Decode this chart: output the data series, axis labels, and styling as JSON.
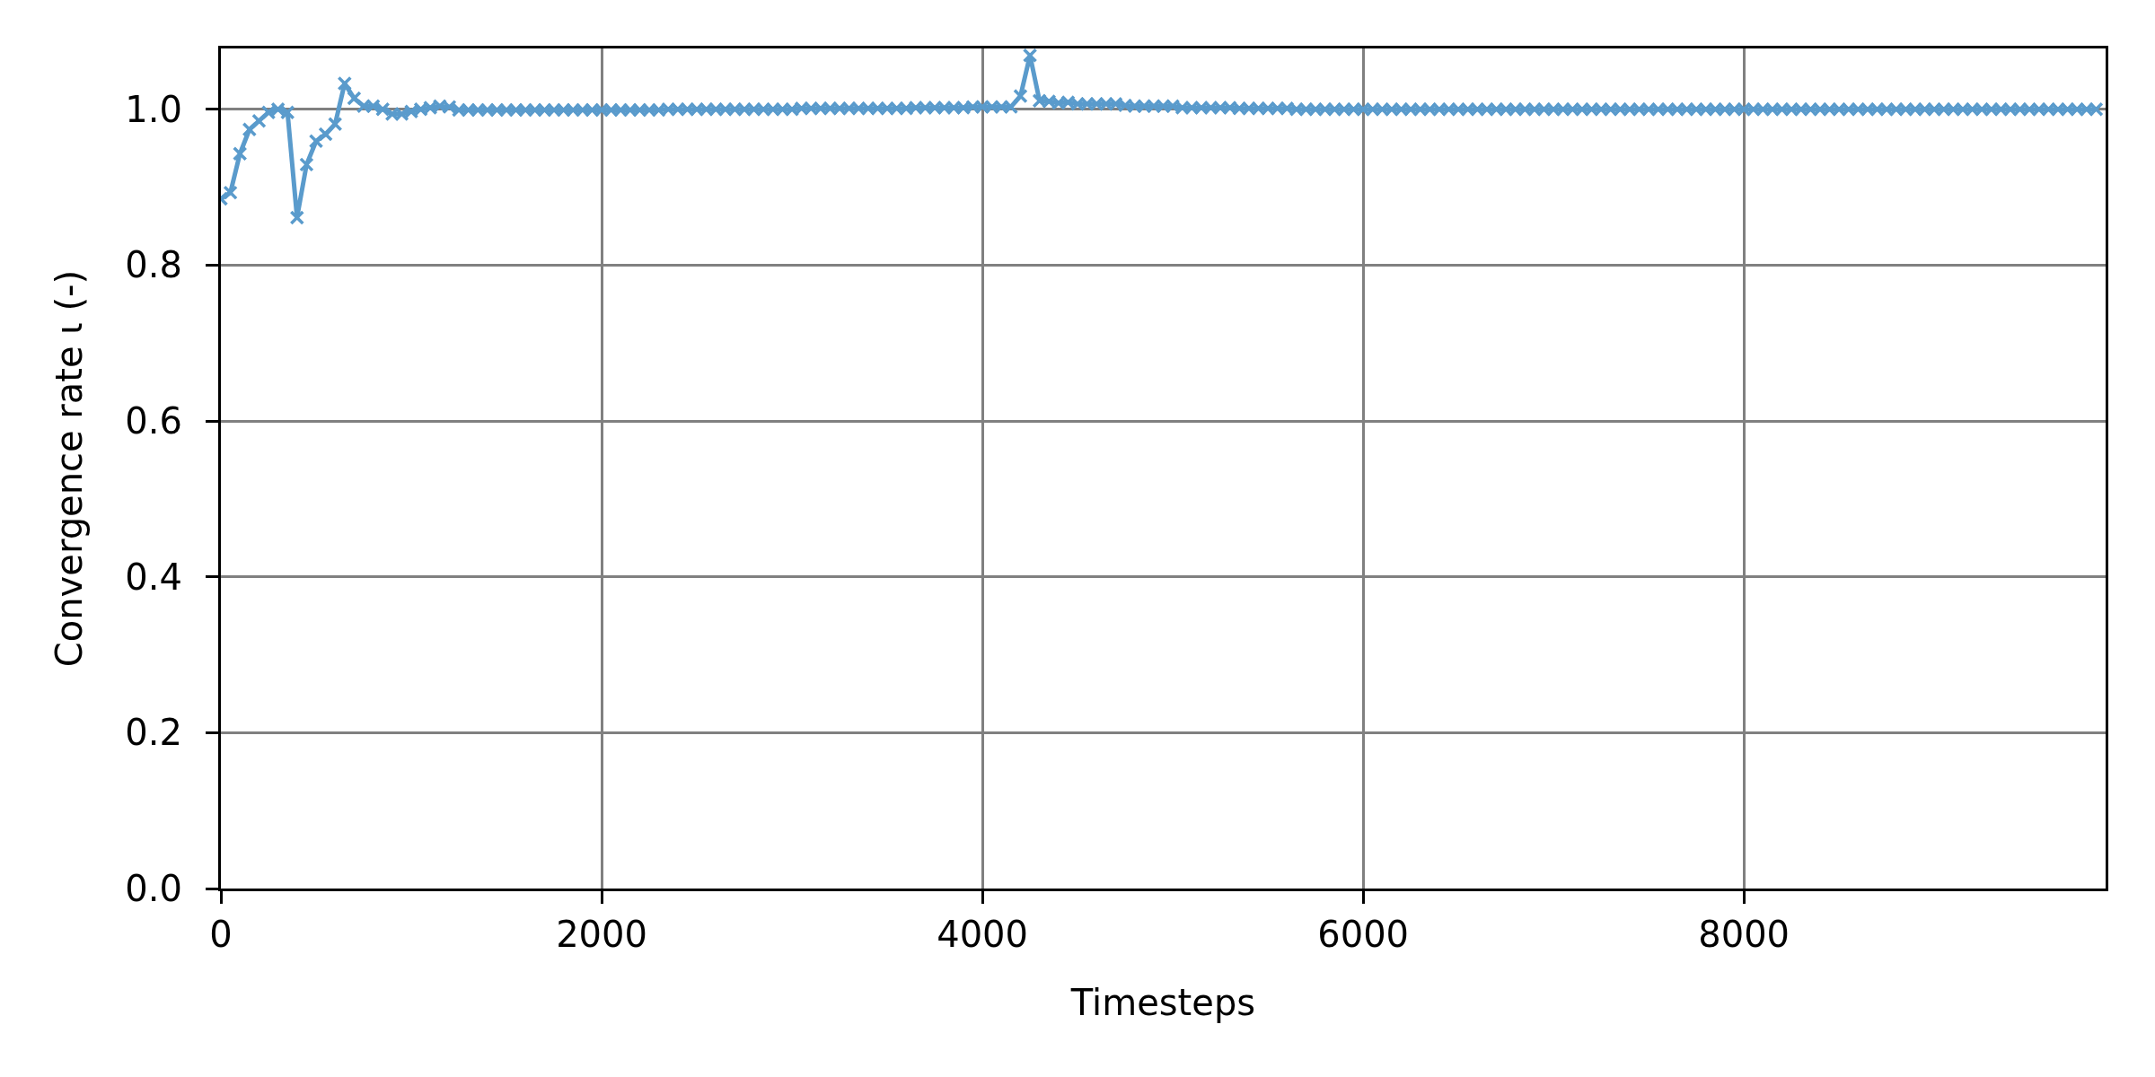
{
  "chart_data": {
    "type": "line",
    "xlabel": "Timesteps",
    "ylabel": "Convergence rate ι (-)",
    "x": [
      0,
      50,
      100,
      150,
      200,
      250,
      300,
      350,
      400,
      450,
      500,
      550,
      600,
      650,
      700,
      750,
      800,
      850,
      900,
      950,
      1000,
      1050,
      1100,
      1150,
      1200,
      1250,
      1300,
      1350,
      1400,
      1450,
      1500,
      1550,
      1600,
      1650,
      1700,
      1750,
      1800,
      1850,
      1900,
      1950,
      2000,
      2050,
      2100,
      2150,
      2200,
      2250,
      2300,
      2350,
      2400,
      2450,
      2500,
      2550,
      2600,
      2650,
      2700,
      2750,
      2800,
      2850,
      2900,
      2950,
      3000,
      3050,
      3100,
      3150,
      3200,
      3250,
      3300,
      3350,
      3400,
      3450,
      3500,
      3550,
      3600,
      3650,
      3700,
      3750,
      3800,
      3850,
      3900,
      3950,
      4000,
      4050,
      4100,
      4150,
      4200,
      4250,
      4300,
      4350,
      4400,
      4450,
      4500,
      4550,
      4600,
      4650,
      4700,
      4750,
      4800,
      4850,
      4900,
      4950,
      5000,
      5050,
      5100,
      5150,
      5200,
      5250,
      5300,
      5350,
      5400,
      5450,
      5500,
      5550,
      5600,
      5650,
      5700,
      5750,
      5800,
      5850,
      5900,
      5950,
      6000,
      6050,
      6100,
      6150,
      6200,
      6250,
      6300,
      6350,
      6400,
      6450,
      6500,
      6550,
      6600,
      6650,
      6700,
      6750,
      6800,
      6850,
      6900,
      6950,
      7000,
      7050,
      7100,
      7150,
      7200,
      7250,
      7300,
      7350,
      7400,
      7450,
      7500,
      7550,
      7600,
      7650,
      7700,
      7750,
      7800,
      7850,
      7900,
      7950,
      8000,
      8050,
      8100,
      8150,
      8200,
      8250,
      8300,
      8350,
      8400,
      8450,
      8500,
      8550,
      8600,
      8650,
      8700,
      8750,
      8800,
      8850,
      8900,
      8950,
      9000,
      9050,
      9100,
      9150,
      9200,
      9250,
      9300,
      9350,
      9400,
      9450,
      9500,
      9550,
      9600,
      9650,
      9700,
      9750,
      9800,
      9850
    ],
    "values": [
      0.885,
      0.893,
      0.943,
      0.974,
      0.985,
      0.996,
      1.0,
      0.996,
      0.861,
      0.929,
      0.959,
      0.968,
      0.981,
      1.033,
      1.014,
      1.004,
      1.004,
      1.0,
      0.994,
      0.994,
      0.997,
      1.0,
      1.002,
      1.004,
      1.003,
      0.999,
      0.999,
      0.999,
      0.999,
      0.999,
      0.999,
      0.999,
      0.999,
      0.999,
      0.999,
      0.999,
      0.999,
      0.999,
      0.999,
      0.999,
      0.999,
      0.999,
      0.999,
      0.999,
      0.999,
      0.999,
      0.999,
      1.0,
      1.0,
      1.0,
      1.0,
      1.0,
      1.0,
      1.0,
      1.0,
      1.0,
      1.0,
      1.0,
      1.0,
      1.0,
      1.0,
      1.001,
      1.001,
      1.001,
      1.001,
      1.001,
      1.001,
      1.001,
      1.001,
      1.001,
      1.001,
      1.001,
      1.001,
      1.002,
      1.002,
      1.002,
      1.002,
      1.002,
      1.002,
      1.003,
      1.003,
      1.003,
      1.003,
      1.003,
      1.017,
      1.069,
      1.011,
      1.01,
      1.008,
      1.009,
      1.007,
      1.007,
      1.007,
      1.007,
      1.007,
      1.005,
      1.004,
      1.004,
      1.004,
      1.004,
      1.004,
      1.002,
      1.002,
      1.002,
      1.002,
      1.002,
      1.002,
      1.001,
      1.001,
      1.001,
      1.001,
      1.001,
      1.001,
      1.0,
      1.0,
      1.0,
      1.0,
      1.0,
      1.0,
      1.0,
      1.0,
      1.0,
      1.0,
      1.0,
      1.0,
      1.0,
      1.0,
      1.0,
      1.0,
      1.0,
      1.0,
      1.0,
      1.0,
      1.0,
      1.0,
      1.0,
      1.0,
      1.0,
      1.0,
      1.0,
      1.0,
      1.0,
      1.0,
      1.0,
      1.0,
      1.0,
      1.0,
      1.0,
      1.0,
      1.0,
      1.0,
      1.0,
      1.0,
      1.0,
      1.0,
      1.0,
      1.0,
      1.0,
      1.0,
      1.0,
      1.0,
      1.0,
      1.0,
      1.0,
      1.0,
      1.0,
      1.0,
      1.0,
      1.0,
      1.0,
      1.0,
      1.0,
      1.0,
      1.0,
      1.0,
      1.0,
      1.0,
      1.0,
      1.0,
      1.0,
      1.0,
      1.0,
      1.0,
      1.0,
      1.0,
      1.0,
      1.0,
      1.0,
      1.0,
      1.0,
      1.0,
      1.0,
      1.0,
      1.0,
      1.0,
      1.0,
      1.0,
      1.0
    ],
    "color": "#5a9bcc",
    "marker": "cross",
    "line_style": "solid",
    "xlim": [
      0,
      9900
    ],
    "xticks": [
      0,
      2000,
      4000,
      6000,
      8000
    ],
    "ylim": [
      0,
      1.078
    ],
    "yticks": [
      {
        "value": 0,
        "label": "0.0"
      },
      0.2,
      0.4,
      0.6,
      0.8,
      {
        "value": 1,
        "label": "1.0"
      }
    ],
    "grid": true
  }
}
